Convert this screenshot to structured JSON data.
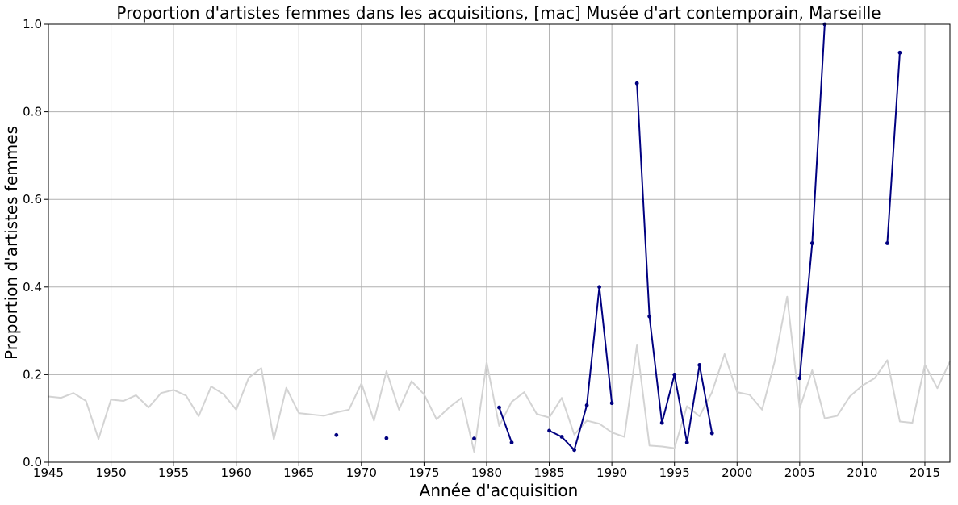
{
  "chart_data": {
    "type": "line",
    "title": "Proportion d'artistes femmes dans les acquisitions, [mac] Musée d'art contemporain, Marseille",
    "xlabel": "Année d'acquisition",
    "ylabel": "Proportion d'artistes femmes",
    "xlim": [
      1945,
      2017
    ],
    "ylim": [
      0,
      1
    ],
    "x_ticks": [
      1945,
      1950,
      1955,
      1960,
      1965,
      1970,
      1975,
      1980,
      1985,
      1990,
      1995,
      2000,
      2005,
      2010,
      2015
    ],
    "y_ticks": [
      0.0,
      0.2,
      0.4,
      0.6,
      0.8,
      1.0
    ],
    "y_tick_labels": [
      "0.0",
      "0.2",
      "0.4",
      "0.6",
      "0.8",
      "1.0"
    ],
    "grid": true,
    "series": [
      {
        "color": "#d3d3d3",
        "markers": false,
        "points": [
          [
            1945,
            0.15
          ],
          [
            1946,
            0.147
          ],
          [
            1947,
            0.158
          ],
          [
            1948,
            0.14
          ],
          [
            1949,
            0.053
          ],
          [
            1950,
            0.143
          ],
          [
            1951,
            0.14
          ],
          [
            1952,
            0.153
          ],
          [
            1953,
            0.125
          ],
          [
            1954,
            0.158
          ],
          [
            1955,
            0.165
          ],
          [
            1956,
            0.152
          ],
          [
            1957,
            0.105
          ],
          [
            1958,
            0.173
          ],
          [
            1959,
            0.155
          ],
          [
            1960,
            0.12
          ],
          [
            1961,
            0.193
          ],
          [
            1962,
            0.215
          ],
          [
            1963,
            0.052
          ],
          [
            1964,
            0.17
          ],
          [
            1965,
            0.112
          ],
          [
            1966,
            0.109
          ],
          [
            1967,
            0.106
          ],
          [
            1968,
            0.114
          ],
          [
            1969,
            0.12
          ],
          [
            1970,
            0.18
          ],
          [
            1971,
            0.095
          ],
          [
            1972,
            0.208
          ],
          [
            1973,
            0.12
          ],
          [
            1974,
            0.185
          ],
          [
            1975,
            0.155
          ],
          [
            1976,
            0.098
          ],
          [
            1977,
            0.125
          ],
          [
            1978,
            0.147
          ],
          [
            1979,
            0.024
          ],
          [
            1980,
            0.228
          ],
          [
            1981,
            0.083
          ],
          [
            1982,
            0.138
          ],
          [
            1983,
            0.16
          ],
          [
            1984,
            0.11
          ],
          [
            1985,
            0.102
          ],
          [
            1986,
            0.147
          ],
          [
            1987,
            0.063
          ],
          [
            1988,
            0.095
          ],
          [
            1989,
            0.088
          ],
          [
            1990,
            0.068
          ],
          [
            1991,
            0.058
          ],
          [
            1992,
            0.267
          ],
          [
            1993,
            0.038
          ],
          [
            1994,
            0.036
          ],
          [
            1995,
            0.032
          ],
          [
            1996,
            0.128
          ],
          [
            1997,
            0.105
          ],
          [
            1998,
            0.16
          ],
          [
            1999,
            0.247
          ],
          [
            2000,
            0.16
          ],
          [
            2001,
            0.154
          ],
          [
            2002,
            0.12
          ],
          [
            2003,
            0.23
          ],
          [
            2004,
            0.378
          ],
          [
            2005,
            0.123
          ],
          [
            2006,
            0.21
          ],
          [
            2007,
            0.1
          ],
          [
            2008,
            0.106
          ],
          [
            2009,
            0.15
          ],
          [
            2010,
            0.175
          ],
          [
            2011,
            0.192
          ],
          [
            2012,
            0.233
          ],
          [
            2013,
            0.093
          ],
          [
            2014,
            0.09
          ],
          [
            2015,
            0.223
          ],
          [
            2016,
            0.169
          ],
          [
            2017,
            0.23
          ]
        ]
      },
      {
        "color": "#000080",
        "markers": true,
        "points": [
          [
            1968,
            0.062
          ],
          null,
          [
            1972,
            0.055
          ],
          null,
          [
            1979,
            0.054
          ],
          null,
          [
            1981,
            0.125
          ],
          [
            1982,
            0.045
          ],
          null,
          [
            1985,
            0.072
          ],
          [
            1986,
            0.058
          ],
          [
            1987,
            0.028
          ],
          [
            1988,
            0.13
          ],
          [
            1989,
            0.4
          ],
          [
            1990,
            0.135
          ],
          null,
          [
            1992,
            0.865
          ],
          [
            1993,
            0.333
          ],
          [
            1994,
            0.09
          ],
          [
            1995,
            0.2
          ],
          [
            1996,
            0.045
          ],
          [
            1997,
            0.222
          ],
          [
            1998,
            0.066
          ],
          null,
          [
            2005,
            0.192
          ],
          [
            2006,
            0.5
          ],
          [
            2007,
            1.0
          ],
          null,
          [
            2012,
            0.5
          ],
          [
            2013,
            0.935
          ]
        ]
      }
    ]
  }
}
